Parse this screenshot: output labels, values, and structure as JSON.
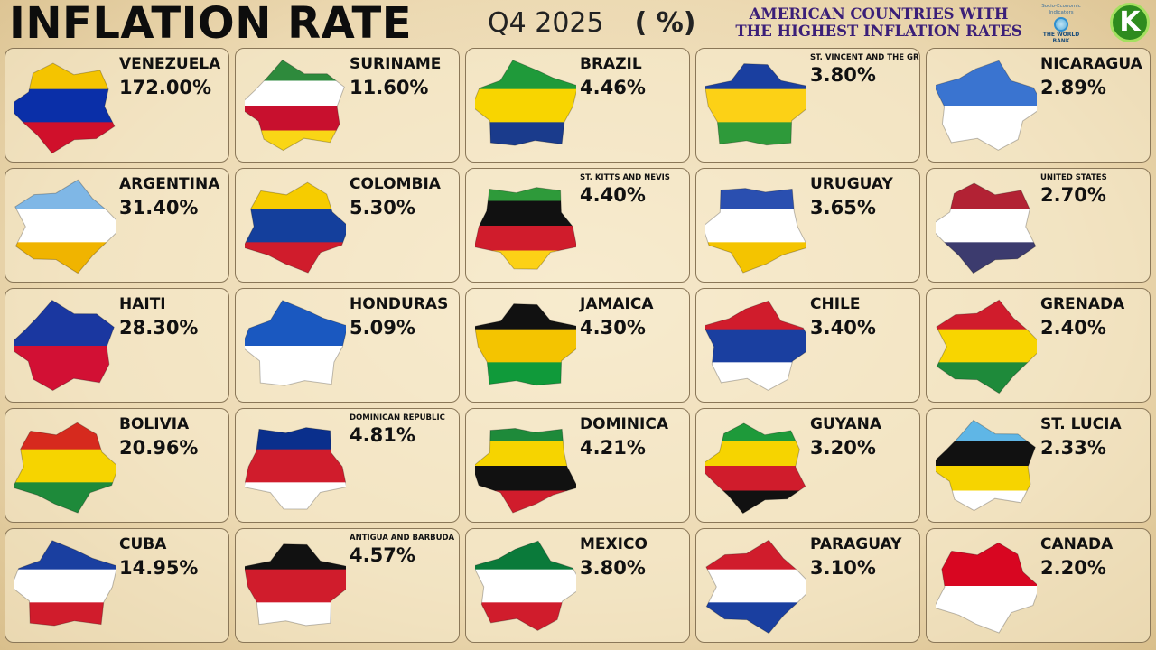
{
  "header": {
    "title": "INFLATION RATE",
    "period": "Q4  2025",
    "unit": "( %)",
    "subtitle": "AMERICAN COUNTRIES WITH THE HIGHEST INFLATION RATES",
    "source_logo": {
      "line1": "Socio-Economic",
      "line2": "Indicators",
      "name": "THE WORLD BANK"
    },
    "channel_logo": "K"
  },
  "countries": [
    {
      "name": "VENEZUELA",
      "rate": "172.00%",
      "colors": [
        "#f4c400",
        "#0a2fa8",
        "#d0102b"
      ]
    },
    {
      "name": "SURINAME",
      "rate": "11.60%",
      "colors": [
        "#2e8a3c",
        "#ffffff",
        "#c8102e",
        "#f9d616"
      ]
    },
    {
      "name": "BRAZIL",
      "rate": "4.46%",
      "colors": [
        "#1f9a3a",
        "#f8d500",
        "#1a3b8c"
      ]
    },
    {
      "name": "ST. VINCENT AND THE GRENADINES",
      "rate": "3.80%",
      "colors": [
        "#1a3fa0",
        "#fcd116",
        "#2e9a3a"
      ]
    },
    {
      "name": "NICARAGUA",
      "rate": "2.89%",
      "colors": [
        "#3a74d0",
        "#ffffff"
      ]
    },
    {
      "name": "ARGENTINA",
      "rate": "31.40%",
      "colors": [
        "#7fb7e6",
        "#ffffff",
        "#f0b400"
      ]
    },
    {
      "name": "COLOMBIA",
      "rate": "5.30%",
      "colors": [
        "#f6cc00",
        "#143f9c",
        "#d01c2c"
      ]
    },
    {
      "name": "ST. KITTS AND NEVIS",
      "rate": "4.40%",
      "colors": [
        "#2e9a3a",
        "#111111",
        "#d01c2c",
        "#fcd116"
      ]
    },
    {
      "name": "URUGUAY",
      "rate": "3.65%",
      "colors": [
        "#2a4fb0",
        "#ffffff",
        "#f4c400"
      ]
    },
    {
      "name": "UNITED STATES",
      "rate": "2.70%",
      "colors": [
        "#b22234",
        "#ffffff",
        "#3c3b6e"
      ]
    },
    {
      "name": "HAITI",
      "rate": "28.30%",
      "colors": [
        "#1a37a0",
        "#d21034"
      ]
    },
    {
      "name": "HONDURAS",
      "rate": "5.09%",
      "colors": [
        "#1a58c0",
        "#ffffff"
      ]
    },
    {
      "name": "JAMAICA",
      "rate": "4.30%",
      "colors": [
        "#111111",
        "#f4c400",
        "#109a3a"
      ]
    },
    {
      "name": "CHILE",
      "rate": "3.40%",
      "colors": [
        "#d01c2c",
        "#1a3fa0",
        "#ffffff"
      ]
    },
    {
      "name": "GRENADA",
      "rate": "2.40%",
      "colors": [
        "#d01c2c",
        "#f8d500",
        "#1e8a3a"
      ]
    },
    {
      "name": "BOLIVIA",
      "rate": "20.96%",
      "colors": [
        "#d62a1e",
        "#f6d400",
        "#1e8a3a"
      ]
    },
    {
      "name": "DOMINICAN REPUBLIC",
      "rate": "4.81%",
      "colors": [
        "#0a2f8c",
        "#d01c2c",
        "#ffffff"
      ]
    },
    {
      "name": "DOMINICA",
      "rate": "4.21%",
      "colors": [
        "#1e8a3a",
        "#f6d400",
        "#111111",
        "#d01c2c"
      ]
    },
    {
      "name": "GUYANA",
      "rate": "3.20%",
      "colors": [
        "#1e9a3a",
        "#f6d400",
        "#d01c2c",
        "#111111"
      ]
    },
    {
      "name": "ST. LUCIA",
      "rate": "2.33%",
      "colors": [
        "#5fb6e6",
        "#111111",
        "#f6d400",
        "#ffffff"
      ]
    },
    {
      "name": "CUBA",
      "rate": "14.95%",
      "colors": [
        "#1a3fa0",
        "#ffffff",
        "#d01c2c"
      ]
    },
    {
      "name": "ANTIGUA AND BARBUDA",
      "rate": "4.57%",
      "colors": [
        "#111111",
        "#d01c2c",
        "#ffffff"
      ]
    },
    {
      "name": "MEXICO",
      "rate": "3.80%",
      "colors": [
        "#0a7a3a",
        "#ffffff",
        "#d01c2c"
      ]
    },
    {
      "name": "PARAGUAY",
      "rate": "3.10%",
      "colors": [
        "#d01c2c",
        "#ffffff",
        "#1a3fa0"
      ]
    },
    {
      "name": "CANADA",
      "rate": "2.20%",
      "colors": [
        "#d80621",
        "#ffffff"
      ]
    }
  ]
}
